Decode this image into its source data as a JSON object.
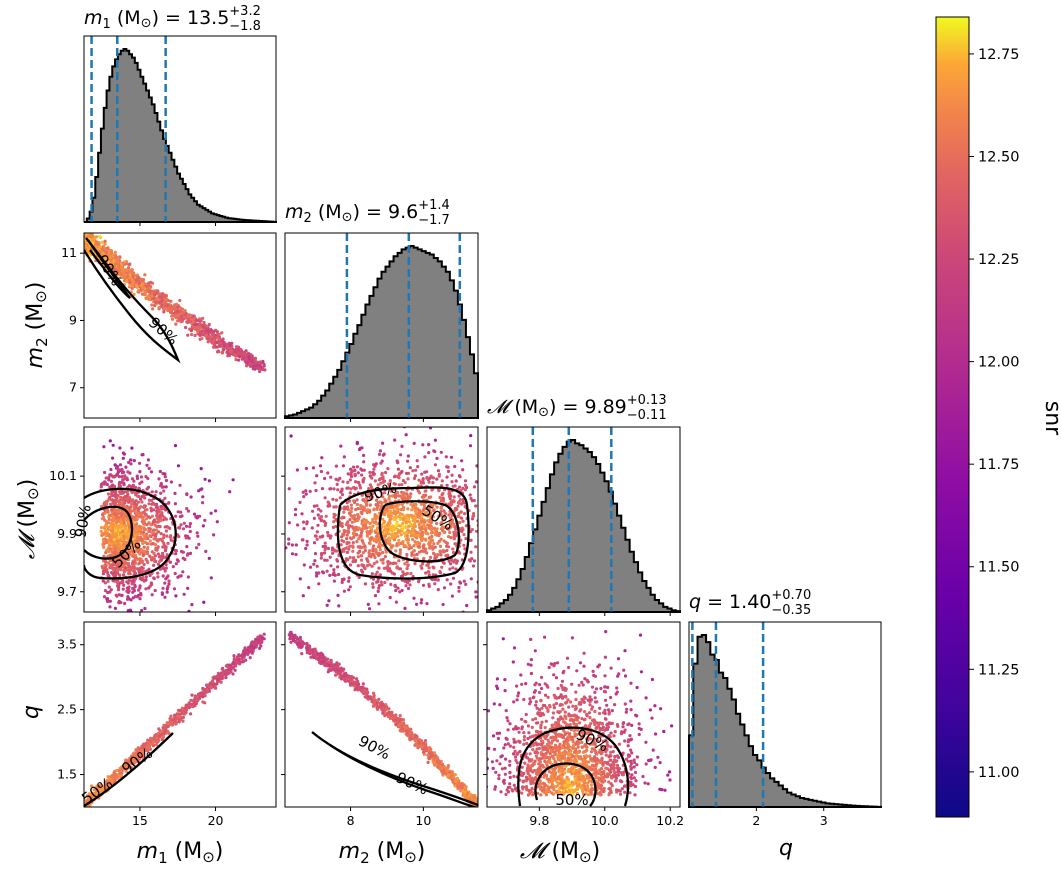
{
  "colors": {
    "hist_fill": "#808080",
    "hist_edge": "#000000",
    "quantile_line": "#1f77b4",
    "contour": "#000000",
    "colormap": "plasma"
  },
  "chart_data": {
    "type": "scatter",
    "parameters": [
      {
        "key": "m1",
        "symbol": "m",
        "sub": "1",
        "unit": "(M",
        "sun": "⊙",
        "title_eq": ") = 13.5",
        "plus": "+3.2",
        "minus": "−1.8",
        "axis_label": "(M",
        "ticks": [
          15,
          20
        ],
        "tick_labels": [
          "15",
          "20"
        ],
        "range": [
          11.3,
          24.0
        ],
        "quantiles": [
          11.8,
          13.5,
          16.7
        ]
      },
      {
        "key": "m2",
        "symbol": "m",
        "sub": "2",
        "unit": "(M",
        "sun": "⊙",
        "title_eq": ") = 9.6",
        "plus": "+1.4",
        "minus": "−1.7",
        "ticks": [
          8,
          10
        ],
        "tick_labels": [
          "8",
          "10"
        ],
        "range": [
          6.2,
          11.5
        ],
        "quantiles": [
          7.9,
          9.6,
          11.0
        ]
      },
      {
        "key": "mc",
        "symbol": "𝓜",
        "unit": "(M",
        "sun": "⊙",
        "title_eq": ") = 9.89",
        "plus": "+0.13",
        "minus": "−0.11",
        "ticks": [
          9.8,
          10.0,
          10.2
        ],
        "tick_labels": [
          "9.8",
          "10.0",
          "10.2"
        ],
        "ytick_labels": [
          "9.7",
          "9.9",
          "10.1"
        ],
        "yticks": [
          9.7,
          9.9,
          10.1
        ],
        "range": [
          9.64,
          10.23
        ],
        "yrange": [
          9.63,
          10.27
        ],
        "quantiles": [
          9.78,
          9.89,
          10.02
        ]
      },
      {
        "key": "q",
        "symbol": "q",
        "title_eq": " = 1.40",
        "plus": "+0.70",
        "minus": "−0.35",
        "ticks": [
          2,
          3
        ],
        "tick_labels": [
          "2",
          "3"
        ],
        "yticks": [
          1.5,
          2.5,
          3.5
        ],
        "ytick_labels": [
          "1.5",
          "2.5",
          "3.5"
        ],
        "range": [
          1.0,
          3.85
        ],
        "yrange": [
          1.0,
          3.85
        ],
        "quantiles": [
          1.05,
          1.4,
          2.1
        ]
      }
    ],
    "m2_ticks": {
      "values": [
        7,
        9,
        11
      ],
      "labels": [
        "7",
        "9",
        "11"
      ],
      "range": [
        6.1,
        11.6
      ]
    },
    "histograms": {
      "m1": [
        0,
        2,
        6,
        14,
        26,
        40,
        54,
        66,
        76,
        84,
        90,
        94,
        97,
        99,
        100,
        99,
        97,
        95,
        92,
        88,
        84,
        80,
        76,
        72,
        68,
        63,
        58,
        53,
        48,
        44,
        40,
        36,
        32,
        28,
        25,
        22,
        19,
        16,
        14,
        12,
        10,
        9,
        8,
        7,
        6,
        5,
        4.5,
        4,
        3.5,
        3,
        2.5,
        2.2,
        2,
        1.8,
        1.6,
        1.4,
        1.2,
        1.1,
        1,
        0.9,
        0.8,
        0.7,
        0.6,
        0.5,
        0.4,
        0.3,
        0.2,
        0.1
      ],
      "m2": [
        1,
        1.5,
        2,
        3,
        4,
        5,
        6,
        8,
        10,
        13,
        16,
        20,
        24,
        28,
        33,
        38,
        43,
        49,
        54,
        60,
        66,
        71,
        76,
        81,
        85,
        88,
        91,
        94,
        96,
        98,
        99,
        100,
        99,
        98,
        97,
        96,
        95,
        93,
        91,
        88,
        85,
        80,
        74,
        66,
        57,
        47,
        37,
        26
      ],
      "mc": [
        1,
        2,
        3,
        5,
        7,
        10,
        14,
        19,
        25,
        32,
        40,
        48,
        56,
        64,
        72,
        80,
        87,
        92,
        96,
        99,
        100,
        98,
        97,
        95,
        93,
        90,
        86,
        81,
        76,
        70,
        63,
        56,
        49,
        42,
        35,
        29,
        23,
        18,
        14,
        10,
        7,
        5,
        3,
        2,
        1,
        0.5
      ],
      "q": [
        40,
        80,
        95,
        96,
        92,
        85,
        82,
        75,
        72,
        66,
        60,
        52,
        46,
        40,
        34,
        29,
        26,
        22,
        19,
        16,
        14,
        12,
        10,
        8,
        7,
        6,
        5,
        4.5,
        4,
        3.5,
        3,
        2.5,
        2,
        1.8,
        1.6,
        1.4,
        1.2,
        1,
        0.8,
        0.6,
        0.5,
        0.4,
        0.3,
        0.2,
        0.1
      ]
    },
    "contour_labels": [
      "90%",
      "50%"
    ],
    "colorbar": {
      "label": "snr",
      "ticks": [
        11.0,
        11.25,
        11.5,
        11.75,
        12.0,
        12.25,
        12.5,
        12.75
      ],
      "tick_labels": [
        "11.00",
        "11.25",
        "11.50",
        "11.75",
        "12.00",
        "12.25",
        "12.50",
        "12.75"
      ],
      "range": [
        10.89,
        12.84
      ]
    }
  }
}
